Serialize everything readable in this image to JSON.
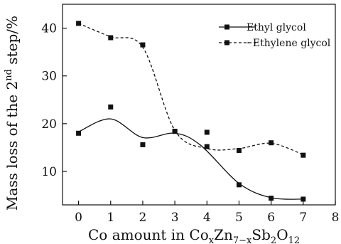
{
  "chart_data": {
    "type": "scatter",
    "x": [
      0,
      1,
      2,
      3,
      4,
      5,
      6,
      7
    ],
    "series": [
      {
        "name": "Ethyl glycol",
        "values": [
          18,
          23.5,
          15.6,
          18.4,
          18.2,
          7.2,
          4.4,
          4.2
        ],
        "fit_values": [
          18.3,
          21.0,
          17.1,
          18.0,
          15.5,
          7.5,
          4.5,
          4.2
        ],
        "fit_x": [
          0,
          1,
          2,
          3,
          3.8,
          5,
          6,
          7
        ],
        "line_style": "solid",
        "color": "#111111"
      },
      {
        "name": "Ethylene glycol",
        "values": [
          41,
          38,
          36.5,
          18.4,
          15.2,
          14.4,
          16,
          13.4
        ],
        "fit_values": [
          41,
          38.2,
          36,
          18.6,
          14.8,
          14.8,
          15.9,
          13.5
        ],
        "fit_x": [
          0,
          1,
          2,
          3,
          4,
          5,
          6,
          7
        ],
        "line_style": "dashed",
        "color": "#111111"
      }
    ],
    "xlabel": "Co amount in Co",
    "xlabel_sub_1": "x",
    "xlabel_mid": "Zn",
    "xlabel_sub_2": "7−x",
    "xlabel_mid_2": "Sb",
    "xlabel_sub_3": "2",
    "xlabel_mid_3": "O",
    "xlabel_sub_4": "12",
    "ylabel": "Mass loss of the 2",
    "ylabel_sup": "nd",
    "ylabel_tail": " step/%",
    "xlim": [
      -0.5,
      8
    ],
    "ylim": [
      3,
      45
    ],
    "x_ticks": [
      0,
      1,
      2,
      3,
      4,
      5,
      6,
      7,
      8
    ],
    "y_ticks": [
      10,
      20,
      30,
      40
    ],
    "legend_position": "top-right",
    "grid": false
  }
}
